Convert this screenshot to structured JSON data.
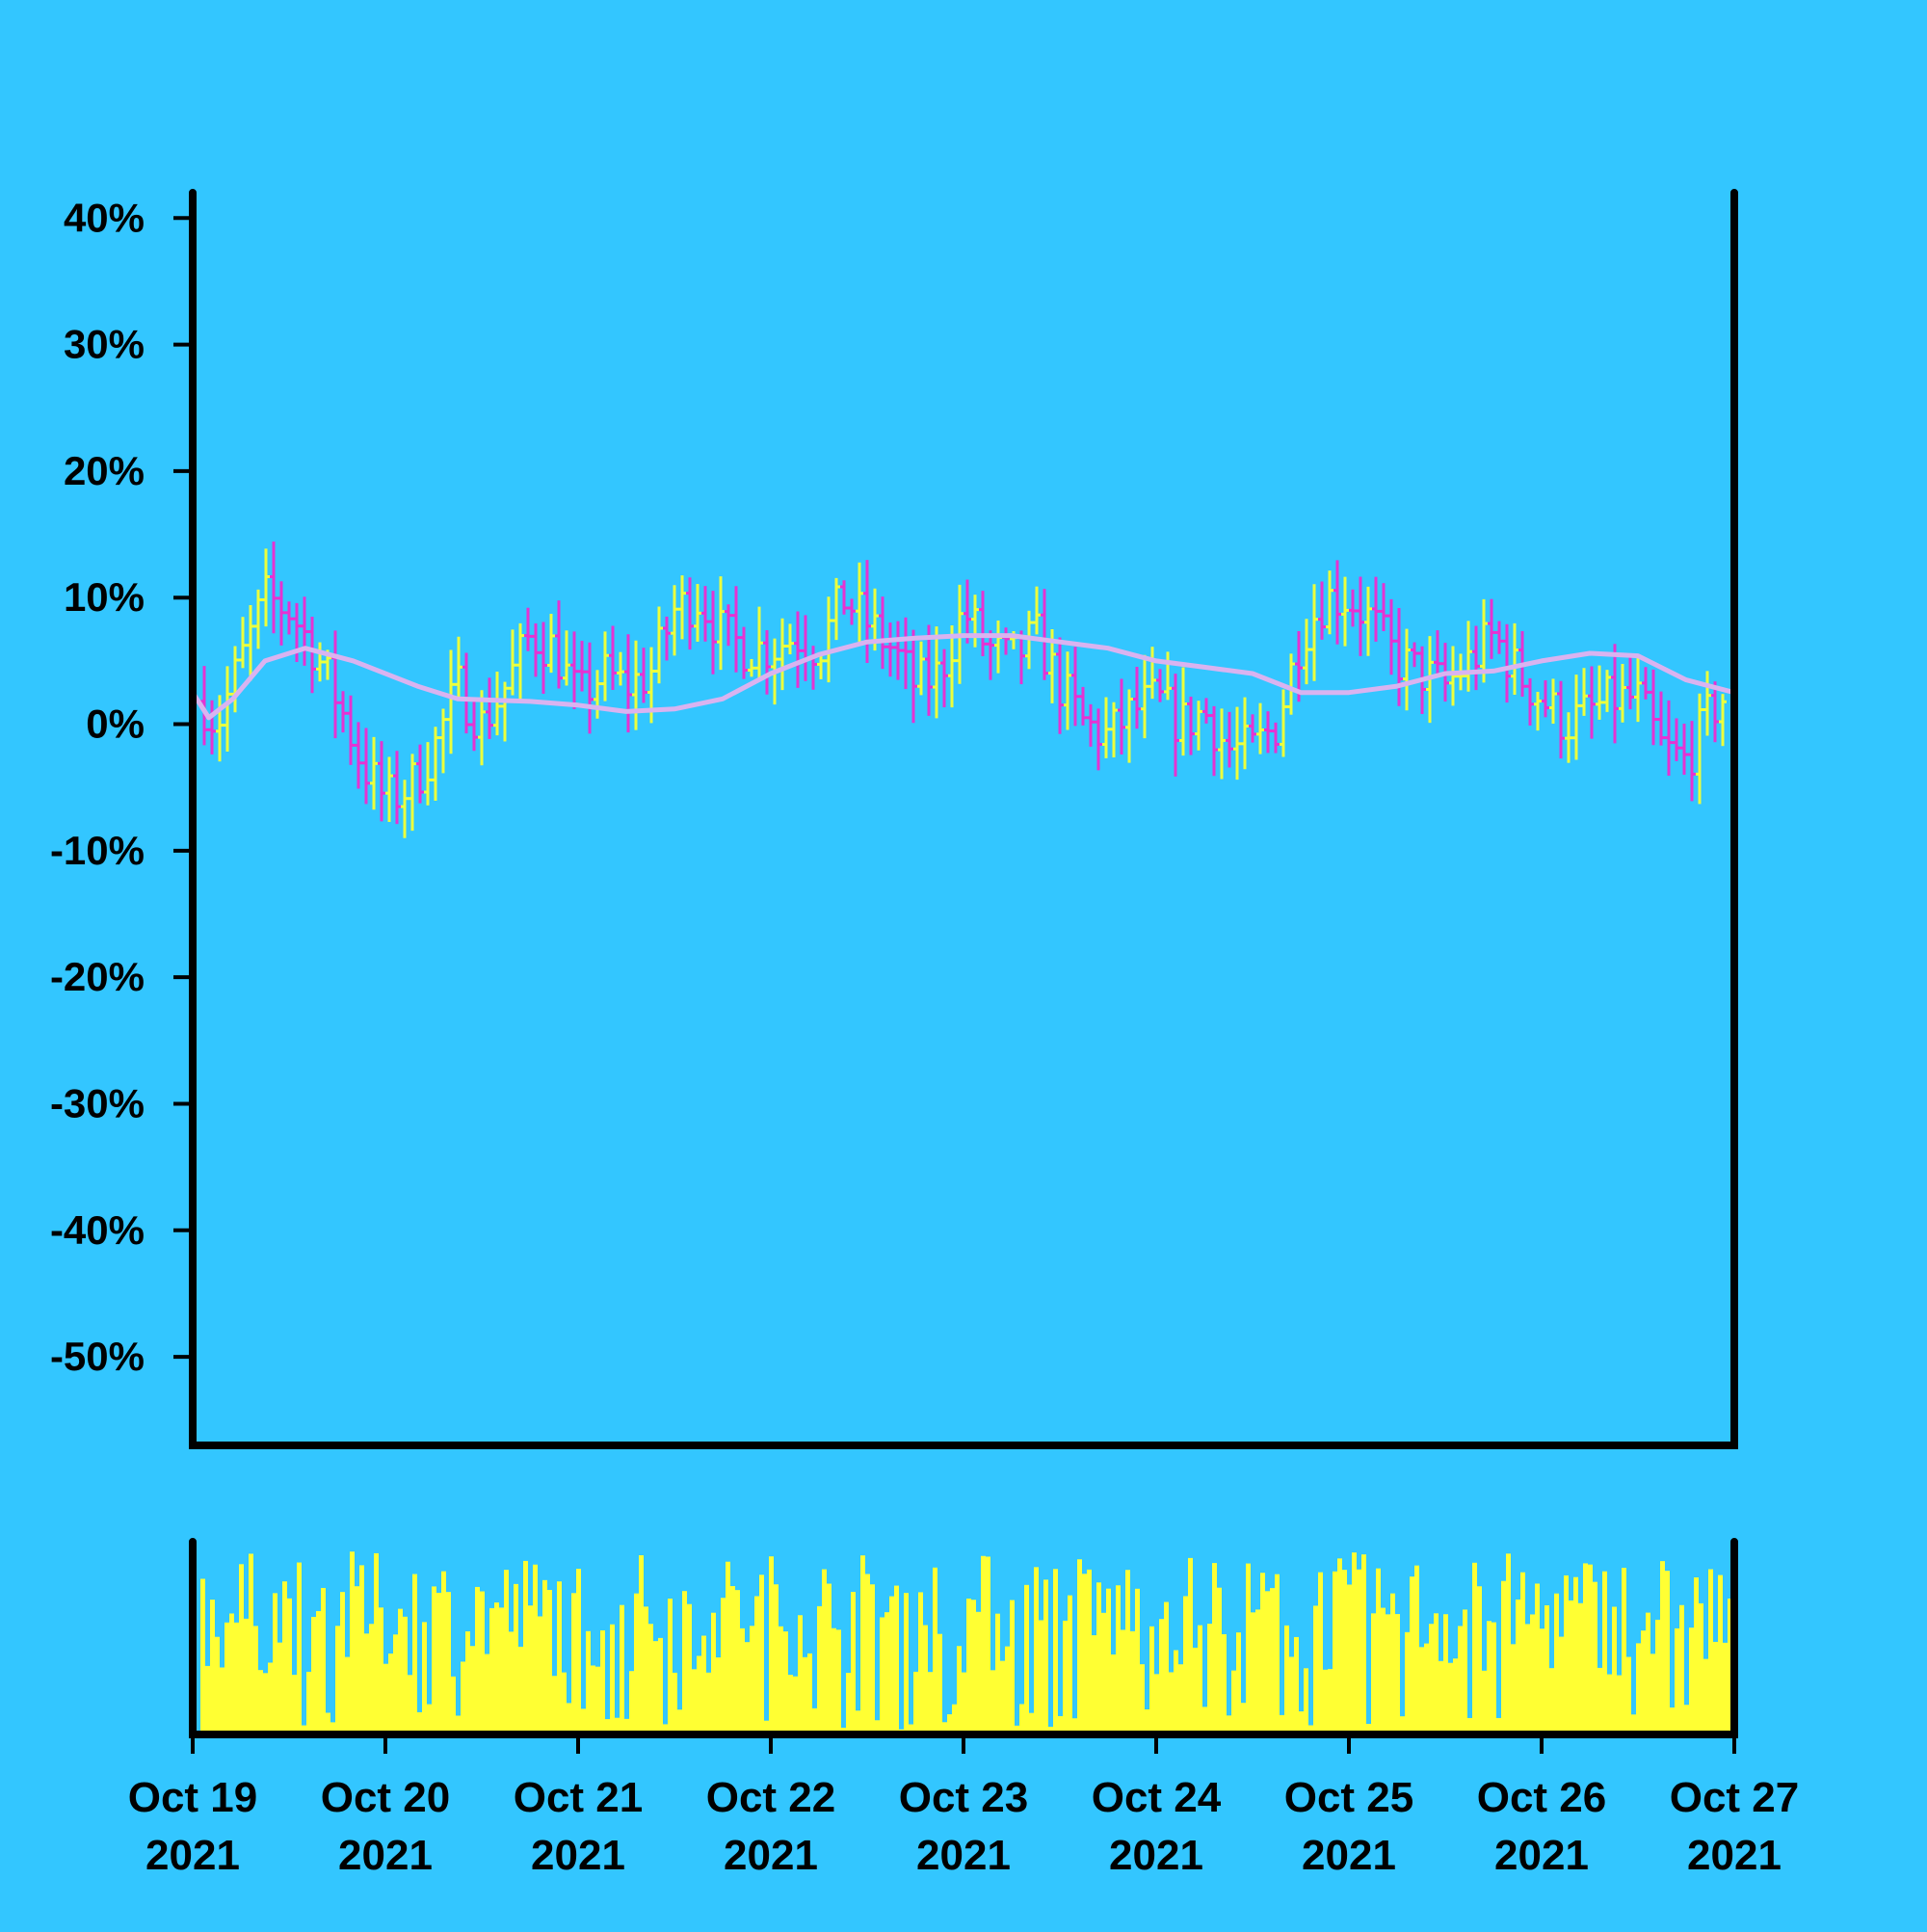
{
  "chart_data": {
    "type": "ohlc",
    "title": "",
    "xlabel": "",
    "ylabel": "",
    "ylim": [
      -57,
      42
    ],
    "yticks": [
      40,
      30,
      20,
      10,
      0,
      -10,
      -20,
      -30,
      -40,
      -50
    ],
    "ytick_labels": [
      "40%",
      "30%",
      "20%",
      "10%",
      "0%",
      "-10%",
      "-20%",
      "-30%",
      "-40%",
      "-50%"
    ],
    "xlim": [
      "2021-10-19",
      "2021-10-27"
    ],
    "xticks": [
      {
        "date": "2021-10-19",
        "line1": "Oct 19",
        "line2": "2021"
      },
      {
        "date": "2021-10-20",
        "line1": "Oct 20",
        "line2": "2021"
      },
      {
        "date": "2021-10-21",
        "line1": "Oct 21",
        "line2": "2021"
      },
      {
        "date": "2021-10-22",
        "line1": "Oct 22",
        "line2": "2021"
      },
      {
        "date": "2021-10-23",
        "line1": "Oct 23",
        "line2": "2021"
      },
      {
        "date": "2021-10-24",
        "line1": "Oct 24",
        "line2": "2021"
      },
      {
        "date": "2021-10-25",
        "line1": "Oct 25",
        "line2": "2021"
      },
      {
        "date": "2021-10-26",
        "line1": "Oct 26",
        "line2": "2021"
      },
      {
        "date": "2021-10-27",
        "line1": "Oct 27",
        "line2": "2021"
      }
    ],
    "series": [
      {
        "type": "ohlc",
        "up_color": "#ecff3c",
        "down_color": "#e632d2",
        "close_path": [
          [
            "2021-10-19T00:00",
            3
          ],
          [
            "2021-10-19T03:00",
            0
          ],
          [
            "2021-10-19T06:00",
            5
          ],
          [
            "2021-10-19T09:00",
            10
          ],
          [
            "2021-10-19T12:00",
            9
          ],
          [
            "2021-10-19T15:00",
            6
          ],
          [
            "2021-10-19T18:00",
            2
          ],
          [
            "2021-10-19T21:00",
            -3
          ],
          [
            "2021-10-20T00:00",
            -6
          ],
          [
            "2021-10-20T03:00",
            -5
          ],
          [
            "2021-10-20T06:00",
            -2
          ],
          [
            "2021-10-20T09:00",
            3
          ],
          [
            "2021-10-20T12:00",
            0
          ],
          [
            "2021-10-20T15:00",
            3
          ],
          [
            "2021-10-20T18:00",
            7
          ],
          [
            "2021-10-20T21:00",
            6
          ],
          [
            "2021-10-21T00:00",
            2
          ],
          [
            "2021-10-21T03:00",
            4
          ],
          [
            "2021-10-21T06:00",
            3
          ],
          [
            "2021-10-21T09:00",
            4
          ],
          [
            "2021-10-21T12:00",
            9
          ],
          [
            "2021-10-21T15:00",
            10
          ],
          [
            "2021-10-21T18:00",
            7
          ],
          [
            "2021-10-21T21:00",
            6
          ],
          [
            "2021-10-22T00:00",
            6
          ],
          [
            "2021-10-22T03:00",
            7
          ],
          [
            "2021-10-22T06:00",
            6
          ],
          [
            "2021-10-22T09:00",
            10
          ],
          [
            "2021-10-22T12:00",
            8
          ],
          [
            "2021-10-22T15:00",
            6
          ],
          [
            "2021-10-22T18:00",
            3
          ],
          [
            "2021-10-22T21:00",
            4
          ],
          [
            "2021-10-23T00:00",
            9
          ],
          [
            "2021-10-23T03:00",
            6
          ],
          [
            "2021-10-23T06:00",
            5
          ],
          [
            "2021-10-23T09:00",
            7
          ],
          [
            "2021-10-23T12:00",
            3
          ],
          [
            "2021-10-23T15:00",
            0
          ],
          [
            "2021-10-23T18:00",
            -1
          ],
          [
            "2021-10-23T21:00",
            1
          ],
          [
            "2021-10-24T00:00",
            2
          ],
          [
            "2021-10-24T03:00",
            0
          ],
          [
            "2021-10-24T06:00",
            1
          ],
          [
            "2021-10-24T09:00",
            -2
          ],
          [
            "2021-10-24T12:00",
            -2
          ],
          [
            "2021-10-24T15:00",
            0
          ],
          [
            "2021-10-24T18:00",
            7
          ],
          [
            "2021-10-24T21:00",
            10
          ],
          [
            "2021-10-25T00:00",
            10
          ],
          [
            "2021-10-25T03:00",
            8
          ],
          [
            "2021-10-25T06:00",
            5
          ],
          [
            "2021-10-25T09:00",
            4
          ],
          [
            "2021-10-25T12:00",
            3
          ],
          [
            "2021-10-25T15:00",
            5
          ],
          [
            "2021-10-25T18:00",
            7
          ],
          [
            "2021-10-25T21:00",
            4
          ],
          [
            "2021-10-26T00:00",
            2
          ],
          [
            "2021-10-26T03:00",
            0
          ],
          [
            "2021-10-26T06:00",
            1
          ],
          [
            "2021-10-26T09:00",
            2
          ],
          [
            "2021-10-26T12:00",
            2
          ],
          [
            "2021-10-26T15:00",
            -2
          ],
          [
            "2021-10-26T18:00",
            -3
          ],
          [
            "2021-10-26T21:00",
            1
          ],
          [
            "2021-10-27T00:00",
            3
          ]
        ]
      },
      {
        "type": "line",
        "color": "#d9b3f0",
        "points": [
          [
            "2021-10-19T00:00",
            2.5
          ],
          [
            "2021-10-19T02:00",
            0.5
          ],
          [
            "2021-10-19T05:00",
            2
          ],
          [
            "2021-10-19T09:00",
            5
          ],
          [
            "2021-10-19T14:00",
            6
          ],
          [
            "2021-10-19T20:00",
            5
          ],
          [
            "2021-10-20T04:00",
            3
          ],
          [
            "2021-10-20T09:00",
            2
          ],
          [
            "2021-10-20T18:00",
            1.8
          ],
          [
            "2021-10-21T00:00",
            1.5
          ],
          [
            "2021-10-21T06:00",
            1
          ],
          [
            "2021-10-21T12:00",
            1.2
          ],
          [
            "2021-10-21T18:00",
            2
          ],
          [
            "2021-10-22T00:00",
            4
          ],
          [
            "2021-10-22T06:00",
            5.5
          ],
          [
            "2021-10-22T12:00",
            6.5
          ],
          [
            "2021-10-22T18:00",
            6.8
          ],
          [
            "2021-10-23T00:00",
            7
          ],
          [
            "2021-10-23T06:00",
            7
          ],
          [
            "2021-10-23T12:00",
            6.5
          ],
          [
            "2021-10-23T18:00",
            6
          ],
          [
            "2021-10-24T00:00",
            5
          ],
          [
            "2021-10-24T06:00",
            4.5
          ],
          [
            "2021-10-24T12:00",
            4
          ],
          [
            "2021-10-24T18:00",
            2.5
          ],
          [
            "2021-10-25T00:00",
            2.5
          ],
          [
            "2021-10-25T06:00",
            3
          ],
          [
            "2021-10-25T12:00",
            4
          ],
          [
            "2021-10-25T18:00",
            4.2
          ],
          [
            "2021-10-26T00:00",
            5
          ],
          [
            "2021-10-26T06:00",
            5.6
          ],
          [
            "2021-10-26T12:00",
            5.4
          ],
          [
            "2021-10-26T18:00",
            3.5
          ],
          [
            "2021-10-27T00:00",
            2.5
          ]
        ]
      }
    ],
    "volume": {
      "type": "bar",
      "color": "#ffff33",
      "ylim": [
        0,
        100
      ],
      "range": [
        30,
        95
      ]
    }
  }
}
